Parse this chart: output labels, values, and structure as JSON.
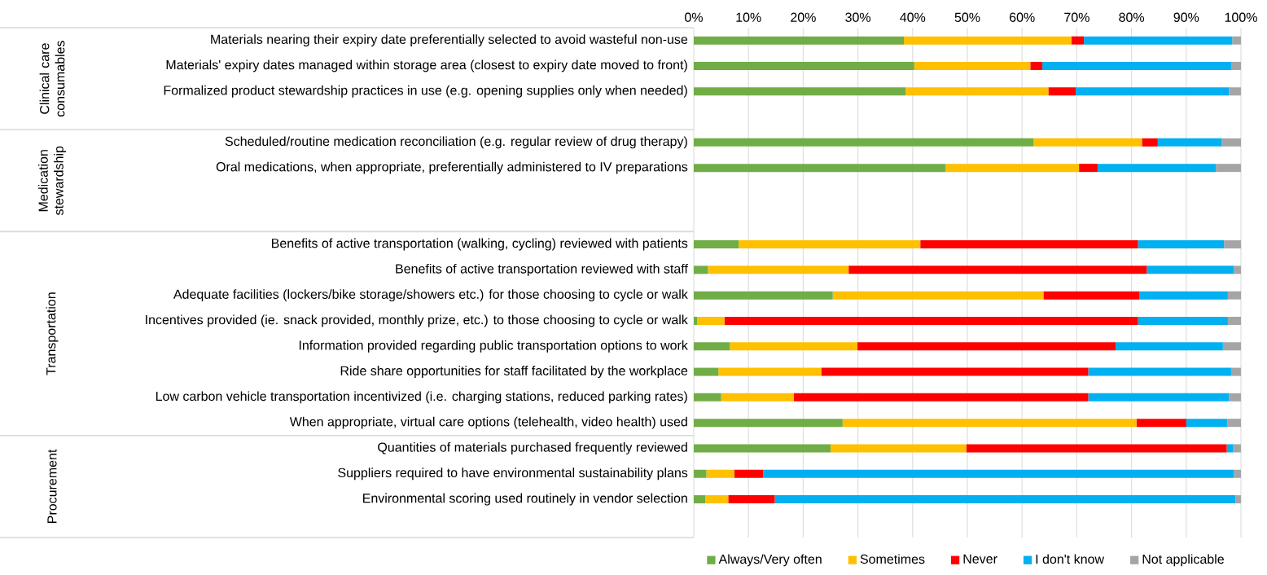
{
  "chart_data": {
    "type": "bar",
    "orientation": "horizontal",
    "stacked": true,
    "categories": [
      "Materials nearing their expiry date preferentially selected to avoid wasteful non-use",
      "Materials' expiry dates managed within storage area (closest to expiry date moved to front)",
      "Formalized product stewardship practices in use (e.g. opening supplies only when needed)",
      null,
      "Scheduled/routine medication reconciliation (e.g. regular review of drug therapy)",
      "Oral medications, when appropriate, preferentially administered to IV preparations",
      null,
      null,
      "Benefits of active transportation (walking, cycling) reviewed with patients",
      "Benefits of active transportation reviewed with staff",
      "Adequate facilities (lockers/bike storage/showers etc.) for those choosing to cycle or walk",
      "Incentives provided (ie. snack provided, monthly prize, etc.) to those choosing to cycle or walk",
      "Information provided regarding public transportation options to work",
      "Ride share opportunities for staff facilitated by the workplace",
      "Low carbon vehicle transportation incentivized (i.e. charging stations, reduced parking rates)",
      "When appropriate, virtual care options (telehealth, video health) used",
      "Quantities of materials purchased frequently reviewed",
      "Suppliers required to have environmental sustainability plans",
      "Environmental scoring used routinely in vendor selection",
      null
    ],
    "series": [
      {
        "name": "Always/Very often",
        "color": "#70ad47",
        "values": [
          38.4,
          40.3,
          38.7,
          null,
          62.1,
          46.0,
          null,
          null,
          8.2,
          2.6,
          25.4,
          0.6,
          6.6,
          4.5,
          5.0,
          27.2,
          25.0,
          2.3,
          2.1,
          null
        ]
      },
      {
        "name": "Sometimes",
        "color": "#ffc000",
        "values": [
          30.6,
          21.2,
          26.1,
          null,
          19.8,
          24.4,
          null,
          null,
          33.2,
          25.7,
          38.5,
          5.0,
          23.3,
          18.8,
          13.3,
          53.7,
          24.8,
          5.1,
          4.2,
          null
        ]
      },
      {
        "name": "Never",
        "color": "#ff0000",
        "values": [
          2.3,
          2.2,
          5.0,
          null,
          2.9,
          3.4,
          null,
          null,
          39.8,
          54.5,
          17.5,
          75.6,
          47.2,
          48.8,
          53.8,
          9.1,
          47.6,
          5.3,
          8.5,
          null
        ]
      },
      {
        "name": "I don't know",
        "color": "#00b0f0",
        "values": [
          27.1,
          34.5,
          28.0,
          null,
          11.7,
          21.6,
          null,
          null,
          15.7,
          15.9,
          16.2,
          16.4,
          19.6,
          26.1,
          25.7,
          7.5,
          1.2,
          86.0,
          84.2,
          null
        ]
      },
      {
        "name": "Not applicable",
        "color": "#a5a5a5",
        "values": [
          1.6,
          1.8,
          2.2,
          null,
          3.5,
          4.6,
          null,
          null,
          3.1,
          1.3,
          2.4,
          2.4,
          3.3,
          1.8,
          2.2,
          2.5,
          1.4,
          1.3,
          1.0,
          null
        ]
      }
    ],
    "xlim": [
      0,
      100
    ],
    "xticks": [
      {
        "value": 0,
        "label": "0%"
      },
      {
        "value": 10,
        "label": "10%"
      },
      {
        "value": 20,
        "label": "20%"
      },
      {
        "value": 30,
        "label": "30%"
      },
      {
        "value": 40,
        "label": "40%"
      },
      {
        "value": 50,
        "label": "50%"
      },
      {
        "value": 60,
        "label": "60%"
      },
      {
        "value": 70,
        "label": "70%"
      },
      {
        "value": 80,
        "label": "80%"
      },
      {
        "value": 90,
        "label": "90%"
      },
      {
        "value": 100,
        "label": "100%"
      }
    ],
    "grid": "x",
    "legend": "bottom",
    "annotations": [
      "Clinical care consumables",
      "Medication stewardship",
      "Transportation",
      "Procurement"
    ]
  }
}
